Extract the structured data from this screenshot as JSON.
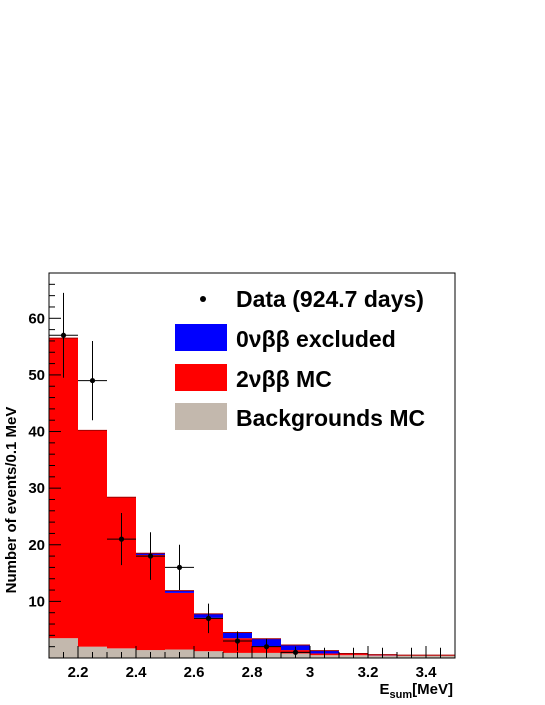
{
  "chart_data": {
    "type": "bar",
    "title": "",
    "ylabel": "Number of events/0.1 MeV",
    "xlabel": {
      "main": "E",
      "sub": "sum",
      "unit": "[MeV]"
    },
    "xlim": [
      2.1,
      3.5
    ],
    "ylim": [
      0,
      68
    ],
    "bin_edges": [
      2.1,
      2.2,
      2.3,
      2.4,
      2.5,
      2.6,
      2.7,
      2.8,
      2.9,
      3.0,
      3.1,
      3.2,
      3.3,
      3.4,
      3.5
    ],
    "x_ticks": [
      2.2,
      2.4,
      2.6,
      2.8,
      3.0,
      3.2,
      3.4
    ],
    "x_tick_labels": [
      "2.2",
      "2.4",
      "2.6",
      "2.8",
      "3",
      "3.2",
      "3.4"
    ],
    "y_ticks": [
      10,
      20,
      30,
      40,
      50,
      60
    ],
    "y_tick_labels": [
      "10",
      "20",
      "30",
      "40",
      "50",
      "60"
    ],
    "series": [
      {
        "name": "Backgrounds MC",
        "color": "#c3b8ad",
        "values": [
          3.5,
          2.0,
          1.7,
          1.4,
          1.5,
          1.2,
          0.9,
          0.9,
          0.8,
          0.5,
          0.5,
          0.4,
          0.4,
          0.4
        ]
      },
      {
        "name": "2νββ MC",
        "color": "#ff0000",
        "values": [
          53.0,
          38.2,
          26.7,
          16.8,
          10.0,
          5.9,
          2.6,
          1.2,
          0.6,
          0.3,
          0.2,
          0.1,
          0.1,
          0.1
        ]
      },
      {
        "name": "0νββ excluded",
        "color": "#0000ff",
        "values": [
          0.0,
          0.0,
          0.0,
          0.3,
          0.4,
          0.7,
          1.0,
          1.3,
          0.9,
          0.5,
          0.1,
          0.1,
          0.0,
          0.0
        ]
      }
    ],
    "data_points": {
      "name": "Data (924.7 days)",
      "x": [
        2.15,
        2.25,
        2.35,
        2.45,
        2.55,
        2.65,
        2.75,
        2.85,
        2.95,
        3.05,
        3.15,
        3.25,
        3.35,
        3.45
      ],
      "y": [
        57,
        49,
        21,
        18,
        16,
        7,
        3,
        2,
        1,
        0,
        0,
        0,
        0,
        0
      ],
      "err_low": [
        7.5,
        7.0,
        4.6,
        4.2,
        4.0,
        2.6,
        1.7,
        1.4,
        1.0,
        0,
        0,
        0,
        0,
        0
      ],
      "err_high": [
        7.5,
        7.0,
        4.6,
        4.2,
        4.0,
        2.6,
        1.7,
        1.4,
        1.0,
        1.8,
        1.8,
        1.8,
        1.8,
        1.8
      ]
    },
    "legend": {
      "position": "top-right",
      "entries": [
        "Data (924.7 days)",
        "0νββ excluded",
        "2νββ MC",
        "Backgrounds MC"
      ]
    }
  }
}
